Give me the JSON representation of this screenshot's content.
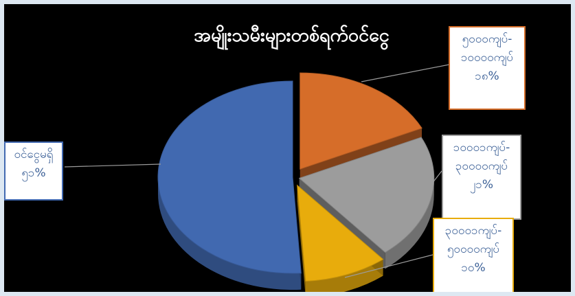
{
  "chart_data": {
    "type": "pie",
    "title": "အမျိုးသမီးများတစ်ရက်ဝင်ငွေ",
    "slices": [
      {
        "label": "ဝင်ငွေမရှိ",
        "value": 51,
        "display": "၅၁%",
        "color": "#4169b0"
      },
      {
        "label": "၅၀၀၀ကျပ်-၁၀၀၀၀ကျပ်",
        "value": 18,
        "display": "၁၈%",
        "color": "#d66d29"
      },
      {
        "label": "၁၀၀၀၁ကျပ်-၃၀၀၀၀ကျပ်",
        "value": 21,
        "display": "၂၁%",
        "color": "#9c9c9c"
      },
      {
        "label": "၃၀၀၀၁ကျပ်-၅၀၀၀၀ကျပ်",
        "value": 10,
        "display": "၁၀%",
        "color": "#e8ac0c"
      }
    ]
  },
  "labels": {
    "none": {
      "line1": "ဝင်ငွေမရှိ",
      "line2": "၅၁%"
    },
    "low": {
      "line1": "၅၀၀၀ကျပ်-",
      "line2": "၁၀၀၀၀ကျပ်",
      "line3": "၁၈%"
    },
    "mid": {
      "line1": "၁၀၀၀၁ကျပ်-",
      "line2": "၃၀၀၀၀ကျပ်",
      "line3": "၂၁%"
    },
    "high": {
      "line1": "၃၀၀၀၁ကျပ်-",
      "line2": "၅၀၀၀၀ကျပ်",
      "line3": "၁၀%"
    }
  }
}
